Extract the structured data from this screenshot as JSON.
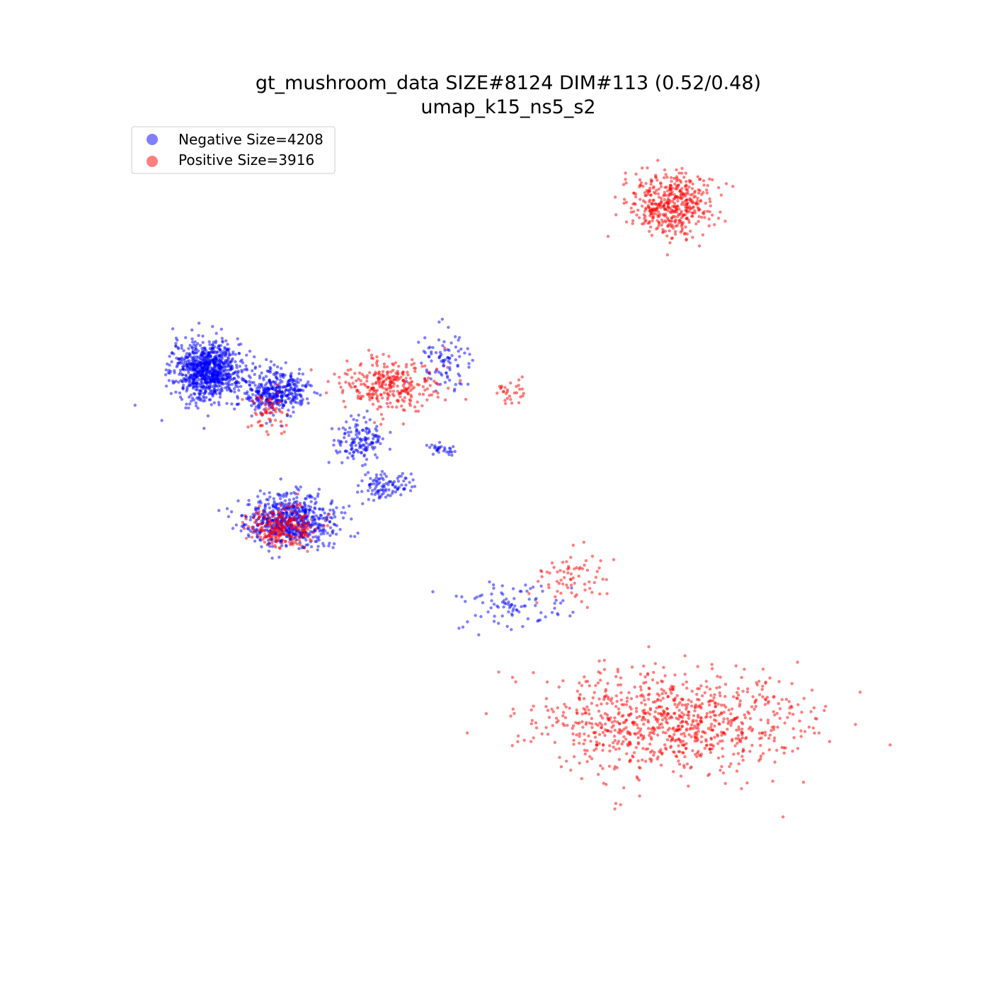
{
  "chart_data": {
    "type": "scatter",
    "title": "gt_mushroom_data SIZE#8124 DIM#113 (0.52/0.48)",
    "subtitle": "umap_k15_ns5_s2",
    "axes_visible": false,
    "grid": false,
    "legend_position": "top-left",
    "xlim": [
      0,
      100
    ],
    "ylim": [
      0,
      100
    ],
    "series": [
      {
        "name": "Negative Size=4208",
        "color": "#0000ff",
        "alpha": 0.5,
        "clusters": [
          {
            "center": [
              11,
              66
            ],
            "spread": [
              4.5,
              4.0
            ],
            "count": 900
          },
          {
            "center": [
              20,
              63
            ],
            "spread": [
              4.0,
              3.0
            ],
            "count": 380
          },
          {
            "center": [
              22,
              45
            ],
            "spread": [
              6.0,
              3.5
            ],
            "count": 650
          },
          {
            "center": [
              31,
              56
            ],
            "spread": [
              3.5,
              3.0
            ],
            "count": 140
          },
          {
            "center": [
              34,
              50
            ],
            "spread": [
              3.5,
              2.0
            ],
            "count": 100
          },
          {
            "center": [
              42,
              67
            ],
            "spread": [
              3.5,
              4.5
            ],
            "count": 90
          },
          {
            "center": [
              51,
              33
            ],
            "spread": [
              7.0,
              3.5
            ],
            "count": 90
          },
          {
            "center": [
              42,
              55
            ],
            "spread": [
              2.5,
              1.0
            ],
            "count": 30
          }
        ]
      },
      {
        "name": "Positive Size=3916",
        "color": "#ff0000",
        "alpha": 0.5,
        "clusters": [
          {
            "center": [
              72,
              89
            ],
            "spread": [
              5.5,
              4.5
            ],
            "count": 450
          },
          {
            "center": [
              72,
              17
            ],
            "spread": [
              17.0,
              7.0
            ],
            "count": 900
          },
          {
            "center": [
              35,
              64
            ],
            "spread": [
              6.5,
              3.5
            ],
            "count": 300
          },
          {
            "center": [
              21,
              44
            ],
            "spread": [
              4.5,
              3.0
            ],
            "count": 250
          },
          {
            "center": [
              19,
              60
            ],
            "spread": [
              3.0,
              3.0
            ],
            "count": 60
          },
          {
            "center": [
              51,
              63
            ],
            "spread": [
              1.8,
              1.8
            ],
            "count": 30
          },
          {
            "center": [
              59,
              37
            ],
            "spread": [
              4.5,
              4.0
            ],
            "count": 70
          }
        ]
      }
    ]
  }
}
